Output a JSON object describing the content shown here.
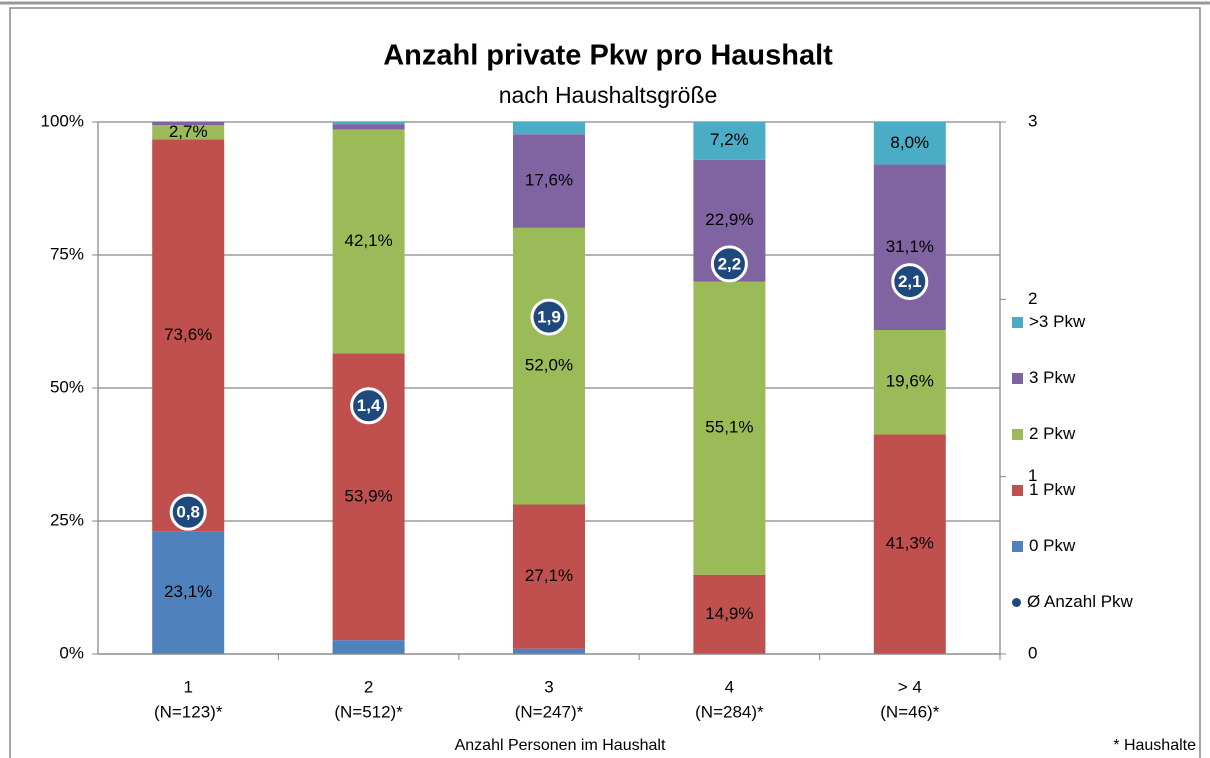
{
  "chart_data": {
    "type": "stacked_bar",
    "title": "Anzahl private Pkw pro Haushalt",
    "subtitle": "nach Haushaltsgröße",
    "x_label": "Anzahl Personen im Haushalt",
    "footnote": "* Haushalte",
    "categories": [
      "1",
      "2",
      "3",
      "4",
      "> 4"
    ],
    "category_notes": [
      "(N=123)*",
      "(N=512)*",
      "(N=247)*",
      "(N=284)*",
      "(N=46)*"
    ],
    "ylim": [
      0,
      100
    ],
    "yticks": [
      {
        "value": 0,
        "label": "0%"
      },
      {
        "value": 25,
        "label": "25%"
      },
      {
        "value": 50,
        "label": "50%"
      },
      {
        "value": 75,
        "label": "75%"
      },
      {
        "value": 100,
        "label": "100%"
      }
    ],
    "y2lim": [
      0,
      3
    ],
    "y2ticks": [
      0,
      1,
      2,
      3
    ],
    "grid": true,
    "legend": "right",
    "series": [
      {
        "name": "0 Pkw",
        "color": "#4f81bd",
        "values": [
          23.1,
          2.6,
          1.0,
          0,
          0
        ],
        "value_labels": [
          "23,1%",
          null,
          null,
          null,
          null
        ]
      },
      {
        "name": "1 Pkw",
        "color": "#c0504d",
        "values": [
          73.6,
          53.9,
          27.1,
          14.9,
          41.3
        ],
        "value_labels": [
          "73,6%",
          "53,9%",
          "27,1%",
          "14,9%",
          "41,3%"
        ]
      },
      {
        "name": "2 Pkw",
        "color": "#9bbb59",
        "values": [
          2.7,
          42.1,
          52.0,
          55.1,
          19.6
        ],
        "value_labels": [
          "2,7%",
          "42,1%",
          "52,0%",
          "55,1%",
          "19,6%"
        ]
      },
      {
        "name": "3 Pkw",
        "color": "#8064a2",
        "values": [
          0.6,
          1.0,
          17.6,
          22.9,
          31.1
        ],
        "value_labels": [
          null,
          null,
          "17,6%",
          "22,9%",
          "31,1%"
        ]
      },
      {
        "name": ">3 Pkw",
        "color": "#4bacc6",
        "values": [
          0,
          0.4,
          2.3,
          7.2,
          8.0
        ],
        "value_labels": [
          null,
          null,
          null,
          "7,2%",
          "8,0%"
        ]
      },
      {
        "name": "Ø Anzahl Pkw",
        "color": "#1f497d",
        "axis": "y2",
        "type": "point",
        "values": [
          0.8,
          1.4,
          1.9,
          2.2,
          2.1
        ],
        "value_labels": [
          "0,8",
          "1,4",
          "1,9",
          "2,2",
          "2,1"
        ]
      }
    ]
  }
}
